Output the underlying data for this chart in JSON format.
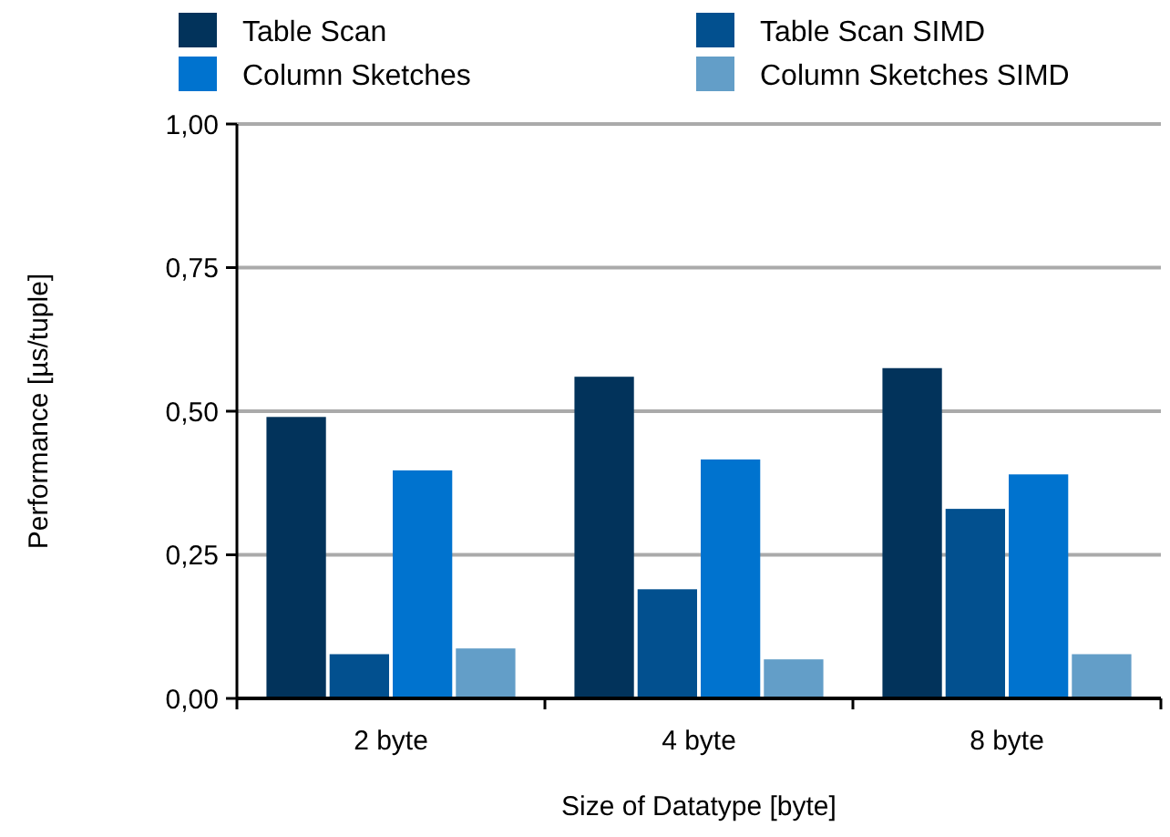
{
  "chart_data": {
    "type": "bar",
    "xlabel": "Size of Datatype [byte]",
    "ylabel": "Performance [µs/tuple]",
    "categories": [
      "2 byte",
      "4 byte",
      "8 byte"
    ],
    "series": [
      {
        "name": "Table Scan",
        "color": "#02335b",
        "values": [
          0.49,
          0.56,
          0.575
        ]
      },
      {
        "name": "Table Scan SIMD",
        "color": "#02508f",
        "values": [
          0.077,
          0.19,
          0.33
        ]
      },
      {
        "name": "Column Sketches",
        "color": "#0073cf",
        "values": [
          0.397,
          0.416,
          0.39
        ]
      },
      {
        "name": "Column Sketches SIMD",
        "color": "#639ec8",
        "values": [
          0.087,
          0.068,
          0.077
        ]
      }
    ],
    "ylim": [
      0,
      1
    ],
    "yticks": [
      {
        "value": 0,
        "label": "0,00"
      },
      {
        "value": 0.25,
        "label": "0,25"
      },
      {
        "value": 0.5,
        "label": "0,50"
      },
      {
        "value": 0.75,
        "label": "0,75"
      },
      {
        "value": 1,
        "label": "1,00"
      }
    ],
    "grid": "y",
    "legend": "top"
  }
}
